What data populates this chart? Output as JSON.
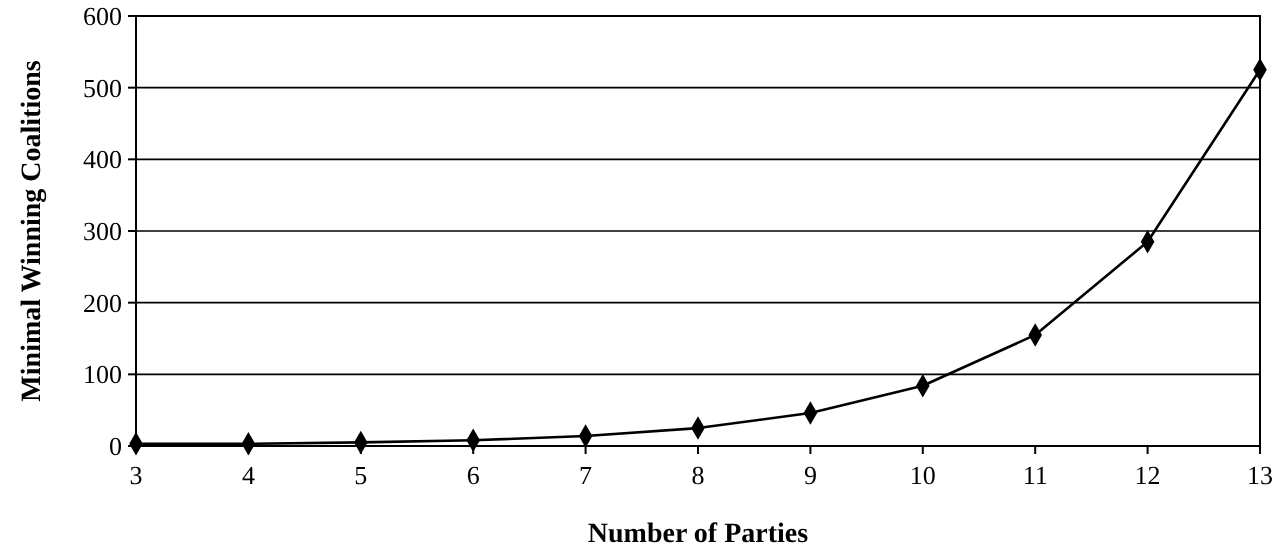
{
  "chart_data": {
    "type": "line",
    "xlabel": "Number of Parties",
    "ylabel": "Minimal Winning Coalitions",
    "x": [
      3,
      4,
      5,
      6,
      7,
      8,
      9,
      10,
      11,
      12,
      13
    ],
    "series": [
      {
        "color": "#000000",
        "values": [
          3,
          3,
          5,
          8,
          14,
          25,
          46,
          84,
          155,
          285,
          525
        ]
      }
    ],
    "xlim": [
      3,
      13
    ],
    "xticks": [
      3,
      4,
      5,
      6,
      7,
      8,
      9,
      10,
      11,
      12,
      13
    ],
    "ylim": [
      0,
      600
    ],
    "yticks": [
      0,
      100,
      200,
      300,
      400,
      500,
      600
    ],
    "grid": "y",
    "marker": "diamond",
    "line_style": "solid"
  }
}
